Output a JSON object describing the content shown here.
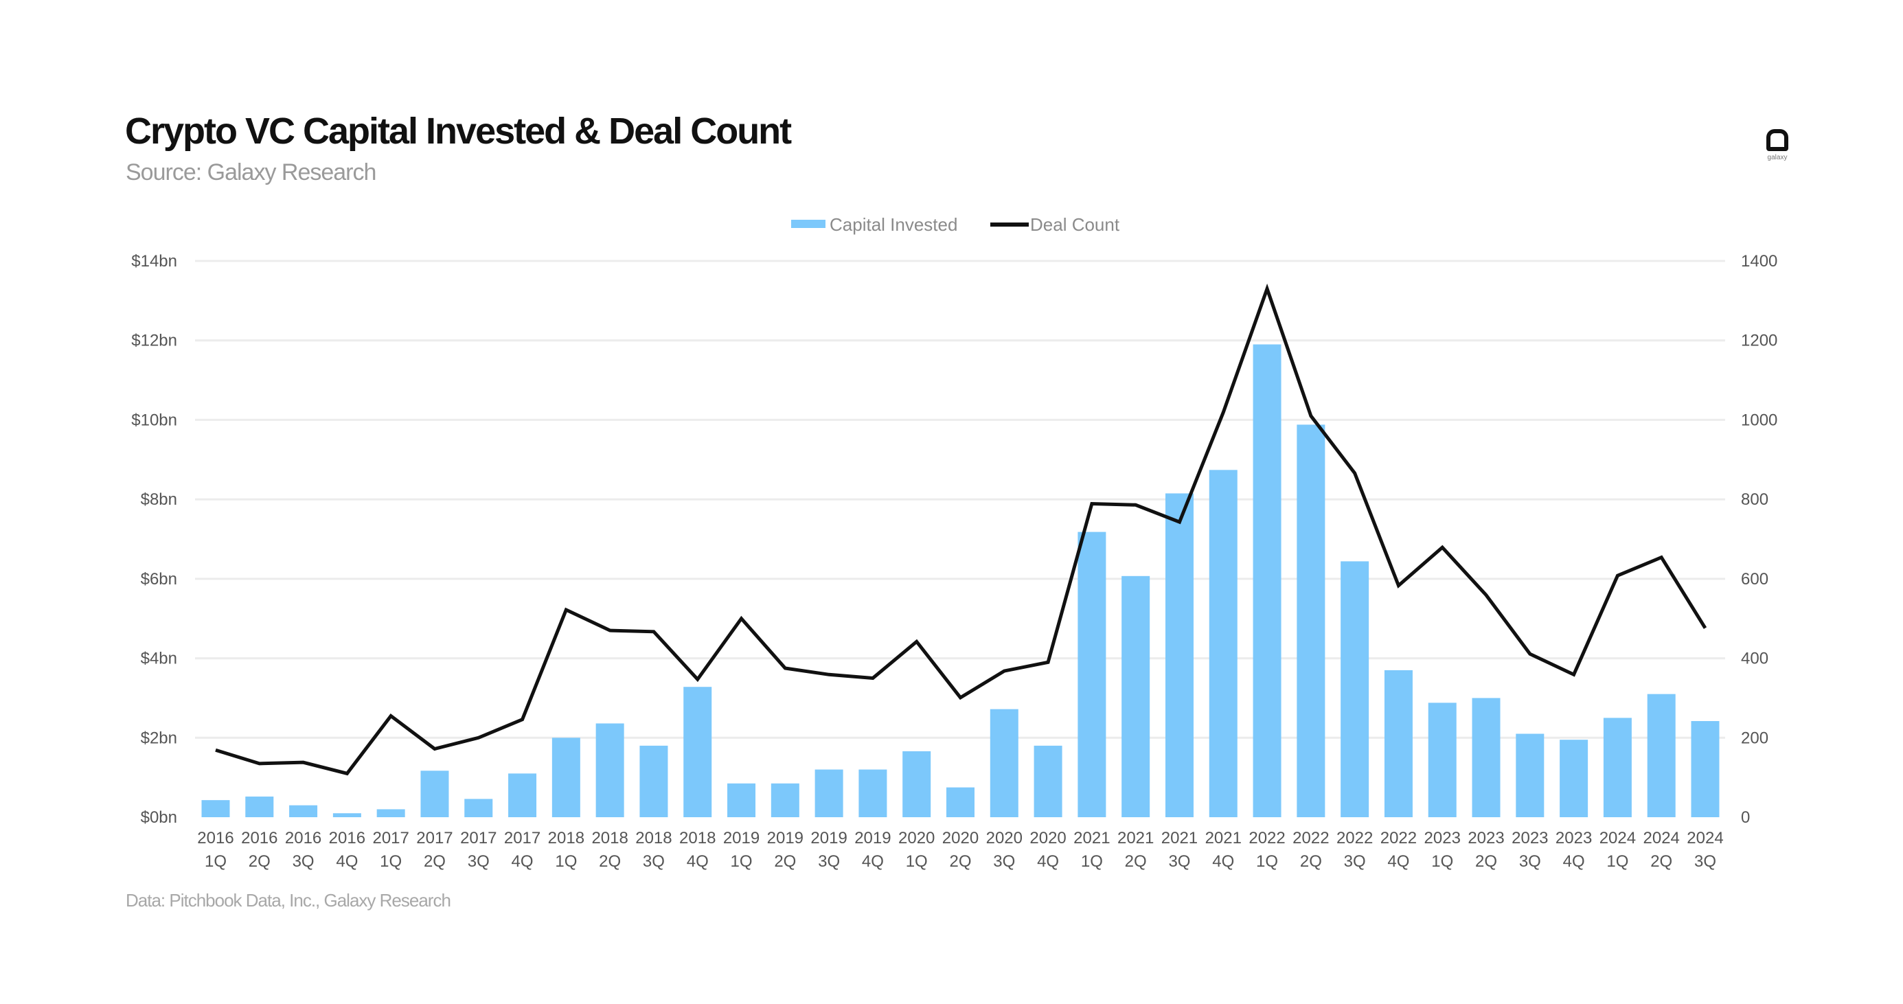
{
  "header": {
    "title": "Crypto VC Capital Invested & Deal Count",
    "subtitle": "Source: Galaxy Research",
    "logo_text": "galaxy"
  },
  "footer": {
    "note": "Data: Pitchbook Data, Inc., Galaxy Research"
  },
  "colors": {
    "bar": "#7cc8fb",
    "line": "#111111",
    "grid": "#ececec"
  },
  "chart_data": {
    "type": "bar",
    "title": "Crypto VC Capital Invested & Deal Count",
    "legend_position": "top-center",
    "grid": true,
    "categories": [
      "2016 1Q",
      "2016 2Q",
      "2016 3Q",
      "2016 4Q",
      "2017 1Q",
      "2017 2Q",
      "2017 3Q",
      "2017 4Q",
      "2018 1Q",
      "2018 2Q",
      "2018 3Q",
      "2018 4Q",
      "2019 1Q",
      "2019 2Q",
      "2019 3Q",
      "2019 4Q",
      "2020 1Q",
      "2020 2Q",
      "2020 3Q",
      "2020 4Q",
      "2021 1Q",
      "2021 2Q",
      "2021 3Q",
      "2021 4Q",
      "2022 1Q",
      "2022 2Q",
      "2022 3Q",
      "2022 4Q",
      "2023 1Q",
      "2023 2Q",
      "2023 3Q",
      "2023 4Q",
      "2024 1Q",
      "2024 2Q",
      "2024 3Q"
    ],
    "series": [
      {
        "name": "Capital Invested",
        "type": "bar",
        "axis": "left",
        "unit": "$bn",
        "values": [
          0.43,
          0.52,
          0.3,
          0.1,
          0.2,
          1.17,
          0.46,
          1.1,
          2.0,
          2.36,
          1.8,
          3.28,
          0.85,
          0.85,
          1.2,
          1.2,
          1.66,
          0.75,
          2.72,
          1.8,
          7.18,
          6.07,
          8.15,
          8.74,
          11.9,
          9.88,
          6.44,
          3.7,
          2.88,
          3.0,
          2.1,
          1.95,
          2.5,
          3.1,
          2.42
        ]
      },
      {
        "name": "Deal Count",
        "type": "line",
        "axis": "right",
        "values": [
          169,
          135,
          138,
          110,
          255,
          172,
          200,
          246,
          522,
          470,
          467,
          347,
          500,
          375,
          359,
          350,
          442,
          301,
          368,
          390,
          789,
          786,
          743,
          1019,
          1330,
          1010,
          866,
          583,
          679,
          559,
          411,
          359,
          608,
          654,
          476
        ]
      }
    ],
    "left_axis": {
      "ylim": [
        0,
        14
      ],
      "ticks": [
        "$0bn",
        "$2bn",
        "$4bn",
        "$6bn",
        "$8bn",
        "$10bn",
        "$12bn",
        "$14bn"
      ]
    },
    "right_axis": {
      "ylim": [
        0,
        1400
      ],
      "ticks": [
        "0",
        "200",
        "400",
        "600",
        "800",
        "1000",
        "1200",
        "1400"
      ]
    }
  }
}
